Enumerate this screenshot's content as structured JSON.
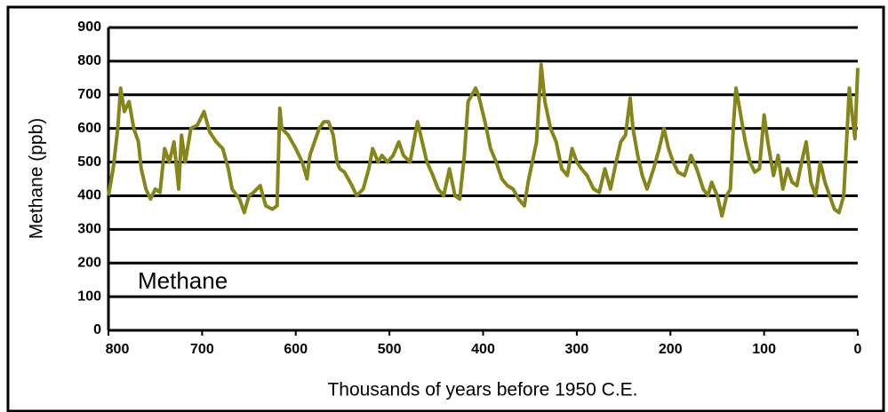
{
  "chart_data": {
    "type": "line",
    "annotation": "Methane",
    "ylabel": "Methane (ppb)",
    "xlabel": "Thousands of years before 1950 C.E.",
    "xlim": [
      800,
      0
    ],
    "ylim": [
      0,
      900
    ],
    "xticks": [
      800,
      700,
      600,
      500,
      400,
      300,
      200,
      100,
      0
    ],
    "yticks": [
      0,
      100,
      200,
      300,
      400,
      500,
      600,
      700,
      800,
      900
    ],
    "grid": true,
    "series": [
      {
        "name": "Methane",
        "color": "#858519",
        "x": [
          800,
          795,
          790,
          787,
          783,
          778,
          773,
          768,
          765,
          760,
          755,
          750,
          745,
          740,
          735,
          730,
          725,
          722,
          718,
          712,
          705,
          698,
          692,
          685,
          678,
          672,
          668,
          660,
          655,
          650,
          645,
          638,
          632,
          625,
          620,
          617,
          615,
          608,
          600,
          593,
          588,
          585,
          580,
          575,
          570,
          565,
          560,
          556,
          553,
          548,
          540,
          535,
          528,
          522,
          518,
          512,
          508,
          502,
          496,
          490,
          485,
          478,
          470,
          465,
          460,
          455,
          448,
          442,
          436,
          430,
          425,
          420,
          416,
          412,
          408,
          405,
          398,
          392,
          386,
          380,
          374,
          368,
          362,
          356,
          352,
          346,
          343,
          338,
          334,
          328,
          322,
          316,
          310,
          305,
          300,
          295,
          289,
          282,
          276,
          270,
          264,
          258,
          253,
          248,
          243,
          240,
          235,
          230,
          225,
          218,
          212,
          207,
          202,
          197,
          192,
          185,
          178,
          172,
          165,
          160,
          156,
          150,
          145,
          140,
          136,
          133,
          130,
          125,
          120,
          115,
          110,
          105,
          100,
          96,
          90,
          85,
          80,
          75,
          70,
          65,
          60,
          55,
          50,
          45,
          40,
          35,
          30,
          25,
          20,
          15,
          12,
          9,
          6,
          3,
          0
        ],
        "values": [
          400,
          480,
          600,
          720,
          650,
          680,
          600,
          560,
          480,
          420,
          390,
          420,
          410,
          540,
          500,
          560,
          420,
          580,
          500,
          600,
          610,
          650,
          590,
          560,
          540,
          480,
          420,
          390,
          350,
          400,
          410,
          430,
          370,
          360,
          370,
          660,
          600,
          580,
          540,
          500,
          450,
          520,
          560,
          600,
          620,
          620,
          580,
          500,
          480,
          470,
          430,
          400,
          420,
          480,
          540,
          500,
          520,
          500,
          520,
          560,
          520,
          500,
          620,
          560,
          500,
          470,
          420,
          400,
          480,
          400,
          390,
          520,
          680,
          700,
          720,
          700,
          620,
          540,
          500,
          450,
          430,
          420,
          390,
          370,
          440,
          520,
          560,
          790,
          680,
          600,
          560,
          480,
          460,
          540,
          500,
          480,
          460,
          420,
          410,
          480,
          420,
          500,
          560,
          580,
          690,
          600,
          520,
          460,
          420,
          480,
          540,
          600,
          540,
          500,
          470,
          460,
          520,
          480,
          420,
          400,
          440,
          400,
          340,
          400,
          420,
          600,
          720,
          640,
          560,
          500,
          470,
          480,
          640,
          560,
          460,
          520,
          420,
          480,
          440,
          430,
          500,
          560,
          440,
          400,
          500,
          440,
          400,
          360,
          350,
          400,
          560,
          720,
          640,
          570,
          780
        ]
      }
    ]
  }
}
